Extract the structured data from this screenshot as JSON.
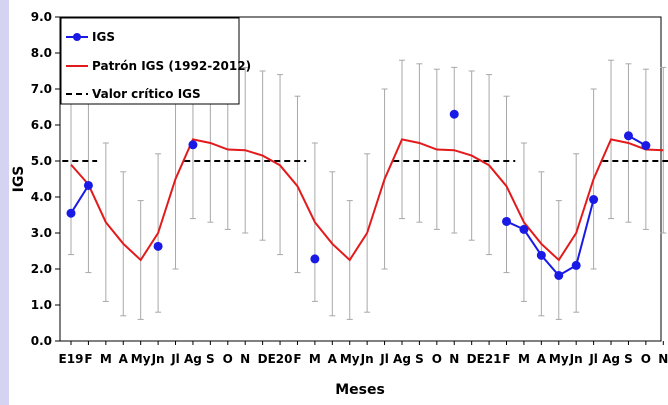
{
  "chart_data": {
    "type": "line",
    "xlabel": "Meses",
    "ylabel": "IGS",
    "ylim": [
      0,
      9
    ],
    "yticks": [
      "0.0",
      "1.0",
      "2.0",
      "3.0",
      "4.0",
      "5.0",
      "6.0",
      "7.0",
      "8.0",
      "9.0"
    ],
    "grid": false,
    "legend_position": "top-left",
    "categories": [
      "E19",
      "F",
      "M",
      "A",
      "My",
      "Jn",
      "Jl",
      "Ag",
      "S",
      "O",
      "N",
      "D",
      "E20",
      "F",
      "M",
      "A",
      "My",
      "Jn",
      "Jl",
      "Ag",
      "S",
      "O",
      "N",
      "D",
      "E21",
      "F",
      "M",
      "A",
      "My",
      "Jn",
      "Jl",
      "Ag",
      "S",
      "O",
      "N"
    ],
    "series": [
      {
        "name": "IGS",
        "color": "#1a1ae6",
        "style": "markers",
        "x": [
          0,
          1,
          5,
          7,
          14,
          22,
          25,
          26,
          27,
          28,
          29,
          30,
          32,
          33
        ],
        "values": [
          3.55,
          4.32,
          2.63,
          5.45,
          2.28,
          6.3,
          3.32,
          3.1,
          2.38,
          1.82,
          2.1,
          3.93,
          5.7,
          5.43
        ]
      },
      {
        "name": "Patrón IGS (1992-2012)",
        "color": "#e31a1c",
        "style": "line",
        "values": [
          4.9,
          4.35,
          3.3,
          2.7,
          2.25,
          3.0,
          4.5,
          5.6,
          5.5,
          5.32,
          5.3,
          5.15,
          4.88,
          4.3,
          3.3,
          2.7,
          2.25,
          3.0,
          4.5,
          5.6,
          5.5,
          5.32,
          5.3,
          5.15,
          4.88,
          4.3,
          3.3,
          2.7,
          2.25,
          3.0,
          4.5,
          5.6,
          5.5,
          5.32,
          5.3
        ],
        "error_low": [
          2.4,
          1.9,
          1.1,
          0.7,
          0.6,
          0.8,
          2.0,
          3.4,
          3.3,
          3.1,
          3.0,
          2.8,
          2.4,
          1.9,
          1.1,
          0.7,
          0.6,
          0.8,
          2.0,
          3.4,
          3.3,
          3.1,
          3.0,
          2.8,
          2.4,
          1.9,
          1.1,
          0.7,
          0.6,
          0.8,
          2.0,
          3.4,
          3.3,
          3.1,
          3.0
        ],
        "error_high": [
          7.4,
          6.8,
          5.5,
          4.7,
          3.9,
          5.2,
          7.0,
          7.8,
          7.7,
          7.55,
          7.6,
          7.5,
          7.4,
          6.8,
          5.5,
          4.7,
          3.9,
          5.2,
          7.0,
          7.8,
          7.7,
          7.55,
          7.6,
          7.5,
          7.4,
          6.8,
          5.5,
          4.7,
          3.9,
          5.2,
          7.0,
          7.8,
          7.7,
          7.55,
          7.6
        ]
      },
      {
        "name": "Valor crítico IGS",
        "color": "#000000",
        "style": "dashed",
        "value": 5.0,
        "segments": [
          [
            0,
            1
          ],
          [
            7,
            13
          ],
          [
            19,
            25
          ],
          [
            31,
            34
          ]
        ]
      }
    ]
  }
}
